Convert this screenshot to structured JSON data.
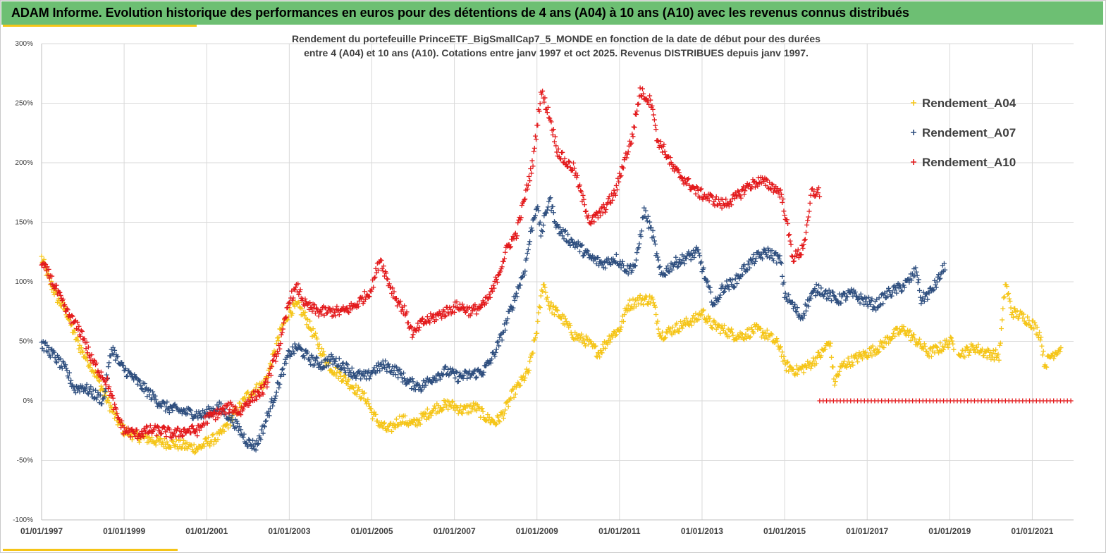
{
  "banner": {
    "title": "ADAM Informe. Evolution historique des performances en euros pour des détentions de 4 ans (A04) à 10 ans (A10) avec les revenus connus distribués"
  },
  "chart_data": {
    "type": "scatter",
    "title_line1": "Rendement du portefeuille PrinceETF_BigSmallCap7_5_MONDE  en fonction de la date de début pour des durées",
    "title_line2": "entre 4 (A04) et 10 ans (A10). Cotations entre janv 1997 et oct 2025. Revenus DISTRIBUES depuis janv 1997.",
    "y_ticks": [
      "300%",
      "250%",
      "200%",
      "150%",
      "100%",
      "50%",
      "0%",
      "-50%",
      "-100%"
    ],
    "ylim": [
      -100,
      300
    ],
    "x_ticks": [
      "01/01/1997",
      "01/01/1999",
      "01/01/2001",
      "01/01/2003",
      "01/01/2005",
      "01/01/2007",
      "01/01/2009",
      "01/01/2011",
      "01/01/2013",
      "01/01/2015",
      "01/01/2017",
      "01/01/2019",
      "01/01/2021"
    ],
    "xlim": [
      1997.0,
      2022.0
    ],
    "legend_position": "top-right",
    "series": [
      {
        "name": "Rendement_A04",
        "color": "#f5c518",
        "x_range": [
          1997.0,
          2021.7
        ],
        "gaps": [
          [
            2019.1,
            2019.2
          ]
        ],
        "anchors": [
          [
            1997.0,
            120
          ],
          [
            1997.2,
            100
          ],
          [
            1997.4,
            85
          ],
          [
            1997.6,
            75
          ],
          [
            1997.8,
            55
          ],
          [
            1998.0,
            40
          ],
          [
            1998.2,
            30
          ],
          [
            1998.4,
            15
          ],
          [
            1998.6,
            0
          ],
          [
            1998.8,
            -15
          ],
          [
            1999.0,
            -25
          ],
          [
            1999.3,
            -30
          ],
          [
            1999.6,
            -32
          ],
          [
            1999.9,
            -35
          ],
          [
            2000.2,
            -36
          ],
          [
            2000.5,
            -38
          ],
          [
            2000.8,
            -40
          ],
          [
            2001.0,
            -35
          ],
          [
            2001.3,
            -30
          ],
          [
            2001.5,
            -20
          ],
          [
            2001.8,
            -5
          ],
          [
            2002.0,
            5
          ],
          [
            2002.2,
            10
          ],
          [
            2002.4,
            15
          ],
          [
            2002.6,
            35
          ],
          [
            2002.8,
            60
          ],
          [
            2003.0,
            75
          ],
          [
            2003.2,
            80
          ],
          [
            2003.4,
            70
          ],
          [
            2003.6,
            55
          ],
          [
            2003.8,
            40
          ],
          [
            2004.0,
            28
          ],
          [
            2004.3,
            20
          ],
          [
            2004.6,
            10
          ],
          [
            2004.9,
            0
          ],
          [
            2005.0,
            -10
          ],
          [
            2005.2,
            -20
          ],
          [
            2005.4,
            -25
          ],
          [
            2005.7,
            -15
          ],
          [
            2006.0,
            -20
          ],
          [
            2006.3,
            -12
          ],
          [
            2006.6,
            -5
          ],
          [
            2006.9,
            -3
          ],
          [
            2007.2,
            -8
          ],
          [
            2007.5,
            -5
          ],
          [
            2007.8,
            -15
          ],
          [
            2008.0,
            -18
          ],
          [
            2008.2,
            -10
          ],
          [
            2008.4,
            5
          ],
          [
            2008.6,
            15
          ],
          [
            2008.8,
            25
          ],
          [
            2009.0,
            60
          ],
          [
            2009.15,
            100
          ],
          [
            2009.3,
            80
          ],
          [
            2009.6,
            70
          ],
          [
            2009.9,
            55
          ],
          [
            2010.2,
            50
          ],
          [
            2010.5,
            40
          ],
          [
            2010.8,
            55
          ],
          [
            2011.0,
            60
          ],
          [
            2011.2,
            80
          ],
          [
            2011.5,
            85
          ],
          [
            2011.8,
            85
          ],
          [
            2012.0,
            55
          ],
          [
            2012.3,
            60
          ],
          [
            2012.6,
            65
          ],
          [
            2012.9,
            70
          ],
          [
            2013.0,
            75
          ],
          [
            2013.2,
            65
          ],
          [
            2013.5,
            60
          ],
          [
            2013.8,
            55
          ],
          [
            2014.0,
            55
          ],
          [
            2014.3,
            60
          ],
          [
            2014.6,
            55
          ],
          [
            2014.9,
            45
          ],
          [
            2015.0,
            30
          ],
          [
            2015.3,
            25
          ],
          [
            2015.6,
            30
          ],
          [
            2015.9,
            40
          ],
          [
            2016.0,
            45
          ],
          [
            2016.1,
            50
          ],
          [
            2016.2,
            15
          ],
          [
            2016.4,
            30
          ],
          [
            2016.7,
            35
          ],
          [
            2017.0,
            40
          ],
          [
            2017.3,
            45
          ],
          [
            2017.6,
            55
          ],
          [
            2017.9,
            60
          ],
          [
            2018.2,
            50
          ],
          [
            2018.5,
            40
          ],
          [
            2018.8,
            45
          ],
          [
            2019.0,
            50
          ],
          [
            2019.3,
            40
          ],
          [
            2019.6,
            45
          ],
          [
            2019.9,
            40
          ],
          [
            2020.2,
            38
          ],
          [
            2020.35,
            100
          ],
          [
            2020.5,
            75
          ],
          [
            2020.8,
            70
          ],
          [
            2021.0,
            65
          ],
          [
            2021.2,
            55
          ],
          [
            2021.3,
            30
          ],
          [
            2021.45,
            38
          ],
          [
            2021.7,
            45
          ]
        ],
        "zero_run": null
      },
      {
        "name": "Rendement_A07",
        "color": "#2f4f7f",
        "x_range": [
          1997.0,
          2018.9
        ],
        "gaps": [],
        "anchors": [
          [
            1997.0,
            48
          ],
          [
            1997.3,
            38
          ],
          [
            1997.6,
            25
          ],
          [
            1997.8,
            10
          ],
          [
            1998.0,
            12
          ],
          [
            1998.3,
            5
          ],
          [
            1998.5,
            0
          ],
          [
            1998.7,
            45
          ],
          [
            1998.9,
            30
          ],
          [
            1999.2,
            20
          ],
          [
            1999.5,
            10
          ],
          [
            1999.8,
            0
          ],
          [
            2000.0,
            -5
          ],
          [
            2000.3,
            -8
          ],
          [
            2000.6,
            -10
          ],
          [
            2000.9,
            -12
          ],
          [
            2001.0,
            -10
          ],
          [
            2001.3,
            -5
          ],
          [
            2001.6,
            -15
          ],
          [
            2001.8,
            -25
          ],
          [
            2002.0,
            -35
          ],
          [
            2002.2,
            -38
          ],
          [
            2002.4,
            -20
          ],
          [
            2002.6,
            0
          ],
          [
            2002.8,
            20
          ],
          [
            2003.0,
            40
          ],
          [
            2003.2,
            45
          ],
          [
            2003.5,
            35
          ],
          [
            2003.8,
            30
          ],
          [
            2004.0,
            35
          ],
          [
            2004.3,
            30
          ],
          [
            2004.6,
            22
          ],
          [
            2004.9,
            20
          ],
          [
            2005.0,
            25
          ],
          [
            2005.3,
            30
          ],
          [
            2005.6,
            25
          ],
          [
            2005.9,
            15
          ],
          [
            2006.2,
            12
          ],
          [
            2006.5,
            20
          ],
          [
            2006.8,
            25
          ],
          [
            2007.1,
            20
          ],
          [
            2007.4,
            22
          ],
          [
            2007.7,
            25
          ],
          [
            2007.9,
            35
          ],
          [
            2008.1,
            50
          ],
          [
            2008.3,
            70
          ],
          [
            2008.5,
            90
          ],
          [
            2008.7,
            110
          ],
          [
            2008.9,
            150
          ],
          [
            2009.0,
            165
          ],
          [
            2009.1,
            140
          ],
          [
            2009.3,
            170
          ],
          [
            2009.5,
            145
          ],
          [
            2009.8,
            135
          ],
          [
            2010.0,
            130
          ],
          [
            2010.3,
            120
          ],
          [
            2010.6,
            115
          ],
          [
            2010.9,
            120
          ],
          [
            2011.2,
            110
          ],
          [
            2011.4,
            115
          ],
          [
            2011.6,
            160
          ],
          [
            2011.8,
            140
          ],
          [
            2012.0,
            105
          ],
          [
            2012.3,
            115
          ],
          [
            2012.6,
            120
          ],
          [
            2012.9,
            125
          ],
          [
            2013.1,
            100
          ],
          [
            2013.3,
            80
          ],
          [
            2013.5,
            95
          ],
          [
            2013.8,
            100
          ],
          [
            2014.0,
            110
          ],
          [
            2014.3,
            120
          ],
          [
            2014.6,
            125
          ],
          [
            2014.9,
            118
          ],
          [
            2015.0,
            90
          ],
          [
            2015.2,
            80
          ],
          [
            2015.4,
            70
          ],
          [
            2015.6,
            85
          ],
          [
            2015.8,
            95
          ],
          [
            2016.0,
            90
          ],
          [
            2016.3,
            85
          ],
          [
            2016.6,
            90
          ],
          [
            2016.9,
            85
          ],
          [
            2017.2,
            80
          ],
          [
            2017.5,
            90
          ],
          [
            2017.8,
            95
          ],
          [
            2018.0,
            100
          ],
          [
            2018.2,
            110
          ],
          [
            2018.3,
            85
          ],
          [
            2018.5,
            90
          ],
          [
            2018.7,
            100
          ],
          [
            2018.9,
            115
          ]
        ],
        "zero_run": null
      },
      {
        "name": "Rendement_A10",
        "color": "#e31a1c",
        "x_range": [
          1997.0,
          2015.85
        ],
        "gaps": [],
        "anchors": [
          [
            1997.0,
            115
          ],
          [
            1997.2,
            105
          ],
          [
            1997.4,
            90
          ],
          [
            1997.6,
            75
          ],
          [
            1997.8,
            65
          ],
          [
            1998.0,
            55
          ],
          [
            1998.2,
            35
          ],
          [
            1998.4,
            25
          ],
          [
            1998.6,
            15
          ],
          [
            1998.8,
            -10
          ],
          [
            1999.0,
            -25
          ],
          [
            1999.3,
            -28
          ],
          [
            1999.6,
            -25
          ],
          [
            1999.9,
            -25
          ],
          [
            2000.2,
            -28
          ],
          [
            2000.5,
            -25
          ],
          [
            2000.8,
            -25
          ],
          [
            2001.0,
            -15
          ],
          [
            2001.3,
            -10
          ],
          [
            2001.6,
            -5
          ],
          [
            2001.8,
            -10
          ],
          [
            2002.0,
            0
          ],
          [
            2002.2,
            5
          ],
          [
            2002.4,
            10
          ],
          [
            2002.6,
            30
          ],
          [
            2002.8,
            50
          ],
          [
            2003.0,
            85
          ],
          [
            2003.2,
            95
          ],
          [
            2003.4,
            80
          ],
          [
            2003.7,
            75
          ],
          [
            2004.0,
            75
          ],
          [
            2004.3,
            75
          ],
          [
            2004.6,
            80
          ],
          [
            2004.9,
            90
          ],
          [
            2005.0,
            95
          ],
          [
            2005.2,
            120
          ],
          [
            2005.4,
            100
          ],
          [
            2005.6,
            85
          ],
          [
            2005.8,
            75
          ],
          [
            2006.0,
            55
          ],
          [
            2006.2,
            65
          ],
          [
            2006.5,
            70
          ],
          [
            2006.8,
            75
          ],
          [
            2007.1,
            80
          ],
          [
            2007.4,
            75
          ],
          [
            2007.7,
            80
          ],
          [
            2007.9,
            90
          ],
          [
            2008.1,
            110
          ],
          [
            2008.3,
            130
          ],
          [
            2008.5,
            140
          ],
          [
            2008.7,
            170
          ],
          [
            2008.9,
            200
          ],
          [
            2009.0,
            230
          ],
          [
            2009.1,
            260
          ],
          [
            2009.3,
            240
          ],
          [
            2009.5,
            210
          ],
          [
            2009.7,
            200
          ],
          [
            2009.9,
            195
          ],
          [
            2010.1,
            170
          ],
          [
            2010.3,
            150
          ],
          [
            2010.6,
            160
          ],
          [
            2010.9,
            175
          ],
          [
            2011.1,
            200
          ],
          [
            2011.3,
            220
          ],
          [
            2011.5,
            260
          ],
          [
            2011.8,
            250
          ],
          [
            2011.9,
            220
          ],
          [
            2012.1,
            210
          ],
          [
            2012.3,
            195
          ],
          [
            2012.6,
            185
          ],
          [
            2012.9,
            175
          ],
          [
            2013.2,
            170
          ],
          [
            2013.5,
            165
          ],
          [
            2013.8,
            170
          ],
          [
            2014.1,
            180
          ],
          [
            2014.4,
            185
          ],
          [
            2014.7,
            180
          ],
          [
            2014.9,
            175
          ],
          [
            2015.0,
            160
          ],
          [
            2015.2,
            120
          ],
          [
            2015.4,
            125
          ],
          [
            2015.55,
            145
          ],
          [
            2015.65,
            175
          ],
          [
            2015.85,
            175
          ]
        ],
        "zero_run": [
          2015.85,
          2022.0
        ]
      }
    ]
  }
}
